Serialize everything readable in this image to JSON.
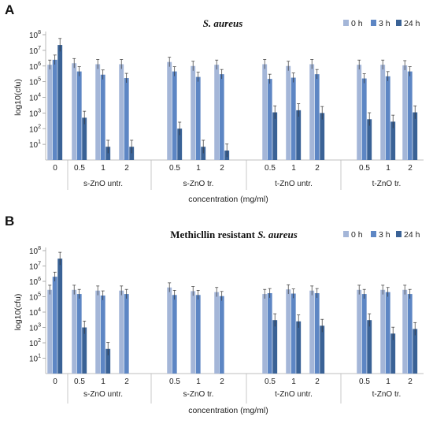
{
  "colors": {
    "h0": "#a4b6d8",
    "h3": "#5d86c4",
    "h24": "#3a6296"
  },
  "chart_data": [
    {
      "panel": "A",
      "type": "bar",
      "title": "S. aureus",
      "title_italic": true,
      "xlabel": "concentration (mg/ml)",
      "ylabel": "log10(cfu)",
      "yscale": "log",
      "ylim": [
        1,
        100000000
      ],
      "yticks": [
        "10",
        "10",
        "10",
        "10",
        "10",
        "10",
        "10",
        "10"
      ],
      "ytick_exps": [
        "1",
        "2",
        "3",
        "4",
        "5",
        "6",
        "7",
        "8"
      ],
      "legend": [
        "0 h",
        "3 h",
        "24 h"
      ],
      "legend_position": "top-right",
      "groups": [
        {
          "label": "",
          "categories": [
            "0"
          ],
          "h0": [
            1200000
          ],
          "h3": [
            2500000
          ],
          "h24": [
            22000000
          ]
        },
        {
          "label": "s-ZnO untr.",
          "categories": [
            "0.5",
            "1",
            "2"
          ],
          "h0": [
            1500000,
            1300000,
            1300000
          ],
          "h3": [
            450000,
            280000,
            170000
          ],
          "h24": [
            500,
            7,
            7
          ]
        },
        {
          "label": "s-ZnO tr.",
          "categories": [
            "0.5",
            "1",
            "2"
          ],
          "h0": [
            1800000,
            1000000,
            1200000
          ],
          "h3": [
            450000,
            200000,
            300000
          ],
          "h24": [
            100,
            7,
            4
          ]
        },
        {
          "label": "t-ZnO untr.",
          "categories": [
            "0.5",
            "1",
            "2"
          ],
          "h0": [
            1300000,
            1000000,
            1300000
          ],
          "h3": [
            150000,
            180000,
            300000
          ],
          "h24": [
            1100,
            1500,
            1000
          ]
        },
        {
          "label": "t-ZnO tr.",
          "categories": [
            "0.5",
            "1",
            "2"
          ],
          "h0": [
            1200000,
            1200000,
            1100000
          ],
          "h3": [
            160000,
            220000,
            450000
          ],
          "h24": [
            400,
            280,
            1100
          ]
        }
      ]
    },
    {
      "panel": "B",
      "type": "bar",
      "title": "Methicllin resistant",
      "title_suffix_italic": "S. aureus",
      "xlabel": "concentration (mg/ml)",
      "ylabel": "log10(cfu)",
      "yscale": "log",
      "ylim": [
        1,
        100000000
      ],
      "yticks": [
        "10",
        "10",
        "10",
        "10",
        "10",
        "10",
        "10",
        "10"
      ],
      "ytick_exps": [
        "1",
        "2",
        "3",
        "4",
        "5",
        "6",
        "7",
        "8"
      ],
      "legend": [
        "0 h",
        "3 h",
        "24 h"
      ],
      "legend_position": "top-right",
      "groups": [
        {
          "label": "",
          "categories": [
            "0"
          ],
          "h0": [
            280000
          ],
          "h3": [
            2000000
          ],
          "h24": [
            30000000
          ]
        },
        {
          "label": "s-ZnO untr.",
          "categories": [
            "0.5",
            "1",
            "2"
          ],
          "h0": [
            280000,
            250000,
            250000
          ],
          "h3": [
            150000,
            120000,
            150000
          ],
          "h24": [
            1000,
            40,
            null
          ]
        },
        {
          "label": "s-ZnO tr.",
          "categories": [
            "0.5",
            "1",
            "2"
          ],
          "h0": [
            400000,
            230000,
            200000
          ],
          "h3": [
            130000,
            130000,
            110000
          ],
          "h24": [
            null,
            null,
            null
          ]
        },
        {
          "label": "t-ZnO untr.",
          "categories": [
            "0.5",
            "1",
            "2"
          ],
          "h0": [
            150000,
            300000,
            250000
          ],
          "h3": [
            170000,
            160000,
            170000
          ],
          "h24": [
            3000,
            2500,
            1300
          ]
        },
        {
          "label": "t-ZnO tr.",
          "categories": [
            "0.5",
            "1",
            "2"
          ],
          "h0": [
            280000,
            280000,
            280000
          ],
          "h3": [
            150000,
            200000,
            150000
          ],
          "h24": [
            3000,
            400,
            800
          ]
        }
      ]
    }
  ]
}
